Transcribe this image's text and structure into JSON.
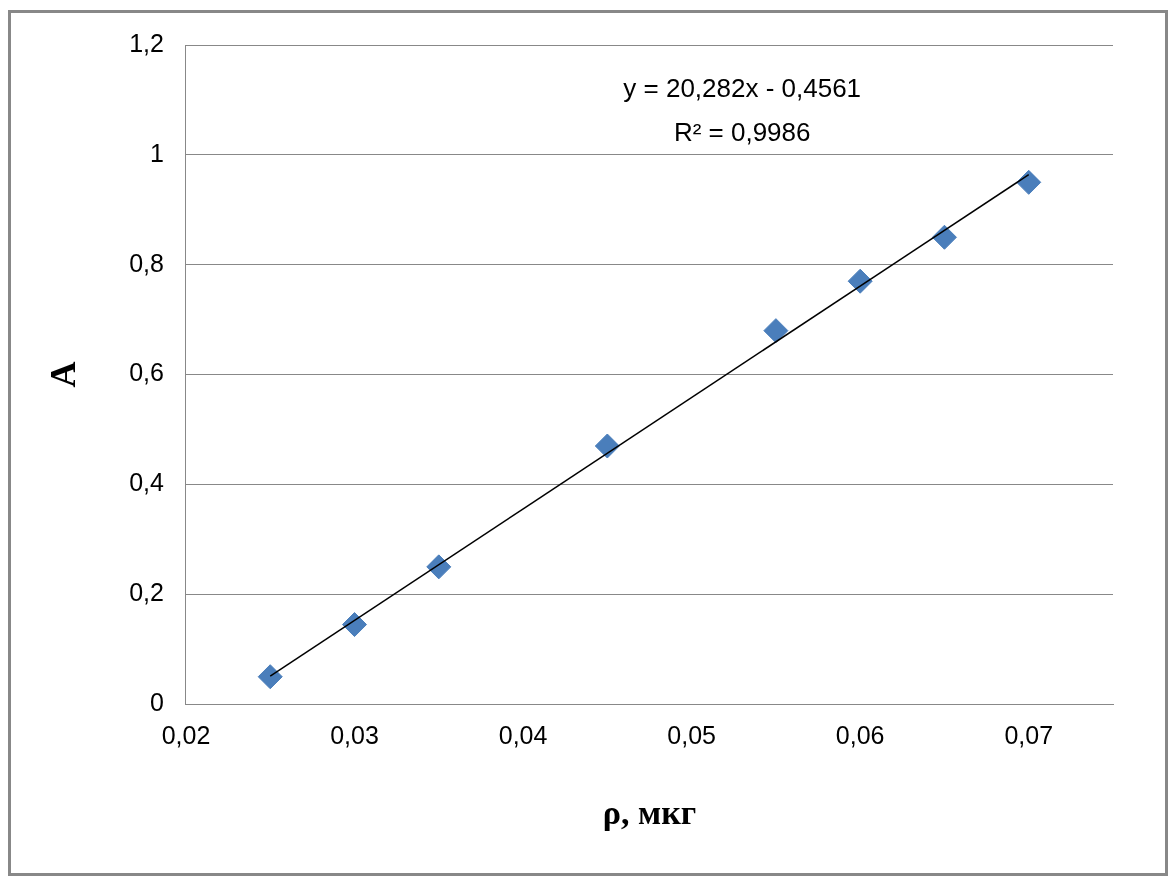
{
  "chart_data": {
    "type": "scatter",
    "xlabel": "ρ, мкг",
    "ylabel": "A",
    "xlim": [
      0.02,
      0.075
    ],
    "xticks": [
      {
        "value": 0.02,
        "label": "0,02"
      },
      {
        "value": 0.03,
        "label": "0,03"
      },
      {
        "value": 0.04,
        "label": "0,04"
      },
      {
        "value": 0.05,
        "label": "0,05"
      },
      {
        "value": 0.06,
        "label": "0,06"
      },
      {
        "value": 0.07,
        "label": "0,07"
      }
    ],
    "ylim": [
      0,
      1.2
    ],
    "yticks": [
      0,
      {
        "value": 0.2,
        "label": "0,2"
      },
      {
        "value": 0.4,
        "label": "0,4"
      },
      {
        "value": 0.6,
        "label": "0,6"
      },
      {
        "value": 0.8,
        "label": "0,8"
      },
      1,
      {
        "value": 1.2,
        "label": "1,2"
      }
    ],
    "grid": "y",
    "legend": false,
    "marker": "diamond",
    "series": [
      {
        "type": "scatter",
        "color": "#4a7ebb",
        "x": [
          0.025,
          0.03,
          0.035,
          0.045,
          0.055,
          0.06,
          0.065,
          0.07
        ],
        "values": [
          0.05,
          0.145,
          0.25,
          0.47,
          0.68,
          0.77,
          0.85,
          0.95
        ]
      },
      {
        "type": "line",
        "color": "#000000",
        "marker": "none",
        "x": [
          0.025,
          0.07
        ],
        "values": [
          0.051,
          0.964
        ]
      }
    ],
    "annotations": [
      "y = 20,282x - 0,4561",
      "R² = 0,9986"
    ]
  }
}
